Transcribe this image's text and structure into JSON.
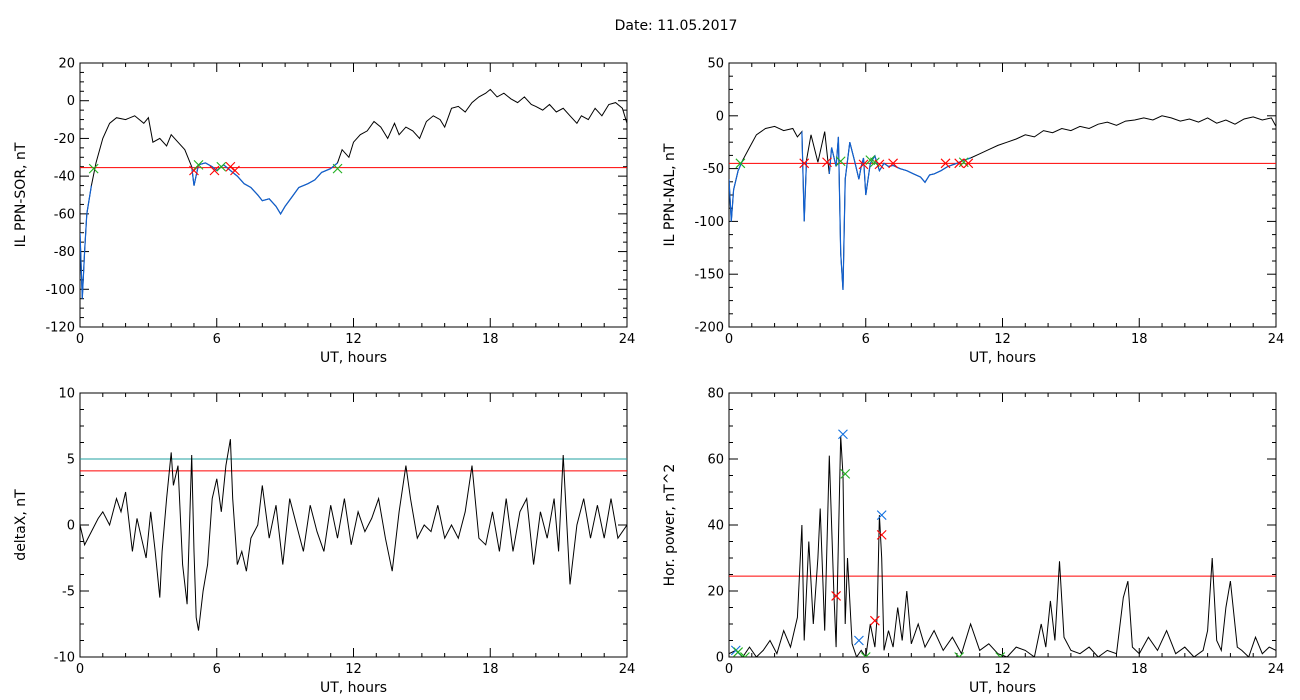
{
  "title": "Date:  11.05.2017",
  "colors": {
    "trace": "#000000",
    "highlight": "#1060d0",
    "threshold": "#ff0000",
    "threshold2": "#20a0a0",
    "marker_red": "#ff0000",
    "marker_green": "#20b020",
    "marker_blue": "#1070e0"
  },
  "chart_data": [
    {
      "id": "sor",
      "type": "line",
      "ylabel": "IL PPN-SOR, nT",
      "xlabel": "UT, hours",
      "xlim": [
        0,
        24
      ],
      "ylim": [
        -120,
        20
      ],
      "xticks": [
        0,
        6,
        12,
        18,
        24
      ],
      "yticks": [
        -120,
        -100,
        -80,
        -60,
        -40,
        -20,
        0,
        20
      ],
      "series": [
        {
          "x": [
            0,
            0.1,
            0.2,
            0.3,
            0.5,
            0.7,
            1.0,
            1.3,
            1.6,
            2.0,
            2.4,
            2.8,
            3.0,
            3.2,
            3.5,
            3.8,
            4.0,
            4.3,
            4.6,
            4.9,
            5.0,
            5.2,
            5.5,
            5.8,
            6.0,
            6.3,
            6.6,
            6.9,
            7.2,
            7.5,
            7.8,
            8.0,
            8.3,
            8.6,
            8.8,
            9.0,
            9.3,
            9.6,
            10.0,
            10.3,
            10.6,
            11.0,
            11.3,
            11.5,
            11.8,
            12.0,
            12.3,
            12.6,
            12.9,
            13.2,
            13.5,
            13.8,
            14.0,
            14.3,
            14.6,
            14.9,
            15.2,
            15.5,
            15.8,
            16.0,
            16.3,
            16.6,
            16.9,
            17.2,
            17.5,
            17.8,
            18.0,
            18.3,
            18.6,
            18.9,
            19.2,
            19.5,
            19.8,
            20.0,
            20.3,
            20.6,
            20.9,
            21.2,
            21.5,
            21.8,
            22.0,
            22.3,
            22.6,
            22.9,
            23.2,
            23.5,
            23.8,
            24.0
          ],
          "y": [
            -70,
            -105,
            -80,
            -60,
            -45,
            -33,
            -20,
            -12,
            -9,
            -10,
            -8,
            -12,
            -9,
            -22,
            -20,
            -24,
            -18,
            -22,
            -26,
            -35,
            -45,
            -34,
            -33,
            -35,
            -37,
            -34,
            -37,
            -40,
            -44,
            -46,
            -50,
            -53,
            -52,
            -56,
            -60,
            -56,
            -51,
            -46,
            -44,
            -42,
            -38,
            -36,
            -33,
            -26,
            -30,
            -22,
            -18,
            -16,
            -11,
            -14,
            -20,
            -12,
            -18,
            -14,
            -16,
            -20,
            -11,
            -8,
            -10,
            -14,
            -4,
            -3,
            -6,
            -1,
            2,
            4,
            6,
            2,
            4,
            1,
            -1,
            2,
            -2,
            -3,
            -5,
            -2,
            -6,
            -4,
            -8,
            -12,
            -8,
            -10,
            -4,
            -8,
            -2,
            -1,
            -4,
            -12
          ],
          "highlight": [
            [
              4.9,
              11.4
            ],
            [
              0.0,
              0.6
            ]
          ]
        }
      ],
      "threshold_lines": [
        {
          "y": -35.5,
          "color": "red"
        }
      ],
      "markers": [
        {
          "x": 0.6,
          "y": -36,
          "color": "green"
        },
        {
          "x": 5.0,
          "y": -37,
          "color": "red"
        },
        {
          "x": 5.2,
          "y": -34,
          "color": "green"
        },
        {
          "x": 5.9,
          "y": -37,
          "color": "red"
        },
        {
          "x": 6.2,
          "y": -35,
          "color": "green"
        },
        {
          "x": 6.6,
          "y": -35,
          "color": "red"
        },
        {
          "x": 6.8,
          "y": -37,
          "color": "red"
        },
        {
          "x": 11.3,
          "y": -36,
          "color": "green"
        }
      ]
    },
    {
      "id": "nal",
      "type": "line",
      "ylabel": "IL PPN-NAL, nT",
      "xlabel": "UT, hours",
      "xlim": [
        0,
        24
      ],
      "ylim": [
        -200,
        50
      ],
      "xticks": [
        0,
        6,
        12,
        18,
        24
      ],
      "yticks": [
        -200,
        -150,
        -100,
        -50,
        0,
        50
      ],
      "series": [
        {
          "x": [
            0,
            0.1,
            0.2,
            0.4,
            0.6,
            0.9,
            1.2,
            1.6,
            2.0,
            2.4,
            2.8,
            3.0,
            3.2,
            3.3,
            3.4,
            3.6,
            3.9,
            4.2,
            4.4,
            4.5,
            4.7,
            4.8,
            4.9,
            5.0,
            5.1,
            5.3,
            5.5,
            5.7,
            5.8,
            5.9,
            6.0,
            6.2,
            6.4,
            6.6,
            6.8,
            7.0,
            7.2,
            7.5,
            7.8,
            8.1,
            8.4,
            8.6,
            8.8,
            9.0,
            9.3,
            9.6,
            10.0,
            10.3,
            10.6,
            11.0,
            11.4,
            11.8,
            12.2,
            12.6,
            13.0,
            13.4,
            13.8,
            14.2,
            14.6,
            15.0,
            15.4,
            15.8,
            16.2,
            16.6,
            17.0,
            17.4,
            17.8,
            18.2,
            18.6,
            19.0,
            19.4,
            19.8,
            20.2,
            20.6,
            21.0,
            21.4,
            21.8,
            22.2,
            22.6,
            23.0,
            23.4,
            23.8,
            24.0
          ],
          "y": [
            -60,
            -100,
            -70,
            -52,
            -42,
            -30,
            -18,
            -12,
            -10,
            -14,
            -12,
            -20,
            -15,
            -100,
            -42,
            -18,
            -44,
            -15,
            -55,
            -30,
            -48,
            -20,
            -130,
            -165,
            -60,
            -25,
            -42,
            -60,
            -48,
            -40,
            -75,
            -45,
            -38,
            -52,
            -45,
            -48,
            -47,
            -50,
            -52,
            -55,
            -58,
            -63,
            -56,
            -55,
            -52,
            -48,
            -45,
            -42,
            -40,
            -36,
            -32,
            -28,
            -25,
            -22,
            -18,
            -20,
            -14,
            -16,
            -12,
            -14,
            -10,
            -12,
            -8,
            -6,
            -9,
            -5,
            -4,
            -2,
            -4,
            0,
            -2,
            -5,
            -3,
            -6,
            -2,
            -7,
            -4,
            -8,
            -3,
            -1,
            -4,
            -2,
            -10
          ],
          "highlight": [
            [
              0.0,
              0.7
            ],
            [
              3.2,
              3.45
            ],
            [
              4.35,
              10.9
            ]
          ]
        }
      ],
      "threshold_lines": [
        {
          "y": -45,
          "color": "red"
        }
      ],
      "markers": [
        {
          "x": 0.5,
          "y": -45,
          "color": "green"
        },
        {
          "x": 3.3,
          "y": -45,
          "color": "red"
        },
        {
          "x": 4.3,
          "y": -44,
          "color": "red"
        },
        {
          "x": 4.9,
          "y": -43,
          "color": "green"
        },
        {
          "x": 5.9,
          "y": -46,
          "color": "red"
        },
        {
          "x": 6.2,
          "y": -42,
          "color": "green"
        },
        {
          "x": 6.4,
          "y": -44,
          "color": "green"
        },
        {
          "x": 6.6,
          "y": -46,
          "color": "red"
        },
        {
          "x": 7.2,
          "y": -45,
          "color": "red"
        },
        {
          "x": 9.5,
          "y": -45,
          "color": "red"
        },
        {
          "x": 10.1,
          "y": -45,
          "color": "red"
        },
        {
          "x": 10.3,
          "y": -44,
          "color": "green"
        },
        {
          "x": 10.5,
          "y": -45,
          "color": "red"
        }
      ]
    },
    {
      "id": "deltax",
      "type": "line",
      "ylabel": "deltaX, nT",
      "xlabel": "UT, hours",
      "xlim": [
        0,
        24
      ],
      "ylim": [
        -10,
        10
      ],
      "xticks": [
        0,
        6,
        12,
        18,
        24
      ],
      "yticks": [
        -10,
        -5,
        0,
        5,
        10
      ],
      "series": [
        {
          "x": [
            0,
            0.2,
            0.5,
            0.8,
            1.0,
            1.3,
            1.6,
            1.8,
            2.0,
            2.3,
            2.5,
            2.7,
            2.9,
            3.1,
            3.3,
            3.5,
            3.6,
            3.8,
            4.0,
            4.1,
            4.3,
            4.5,
            4.7,
            4.9,
            5.0,
            5.1,
            5.2,
            5.4,
            5.6,
            5.8,
            6.0,
            6.2,
            6.4,
            6.6,
            6.7,
            6.9,
            7.1,
            7.3,
            7.5,
            7.8,
            8.0,
            8.3,
            8.6,
            8.9,
            9.2,
            9.5,
            9.8,
            10.1,
            10.4,
            10.7,
            11.0,
            11.3,
            11.6,
            11.9,
            12.2,
            12.5,
            12.8,
            13.1,
            13.4,
            13.7,
            14.0,
            14.3,
            14.5,
            14.8,
            15.1,
            15.4,
            15.7,
            16.0,
            16.3,
            16.6,
            16.9,
            17.2,
            17.5,
            17.8,
            18.1,
            18.4,
            18.7,
            19.0,
            19.3,
            19.6,
            19.9,
            20.2,
            20.5,
            20.8,
            21.0,
            21.2,
            21.5,
            21.8,
            22.1,
            22.4,
            22.7,
            23.0,
            23.3,
            23.6,
            24.0
          ],
          "y": [
            0,
            -1.5,
            -0.5,
            0.5,
            1,
            0,
            2,
            1,
            2.5,
            -2,
            0.5,
            -1,
            -2.5,
            1,
            -2,
            -5.5,
            -2,
            2,
            5.5,
            3,
            4.5,
            -3,
            -6,
            5.3,
            -2,
            -7,
            -8,
            -5,
            -3,
            2,
            3.5,
            1,
            4.5,
            6.5,
            2,
            -3,
            -2,
            -3.5,
            -1,
            0,
            3,
            -1,
            1.5,
            -3,
            2,
            0,
            -2,
            1.5,
            -0.5,
            -2,
            1.5,
            -1,
            2,
            -1.5,
            1,
            -0.5,
            0.5,
            2,
            -1,
            -3.5,
            1,
            4.5,
            2,
            -1,
            0,
            -0.5,
            1.5,
            -1,
            0,
            -1,
            1,
            4.5,
            -1,
            -1.5,
            1,
            -2,
            2,
            -2,
            1,
            2,
            -3,
            1,
            -1,
            2,
            -2,
            5.3,
            -4.5,
            0,
            2,
            -1,
            1.5,
            -1,
            2,
            -1,
            0
          ],
          "highlight": []
        }
      ],
      "threshold_lines": [
        {
          "y": 5.0,
          "color": "teal"
        },
        {
          "y": 4.1,
          "color": "red"
        }
      ],
      "markers": []
    },
    {
      "id": "power",
      "type": "line",
      "ylabel": "Hor. power, nT^2",
      "xlabel": "UT, hours",
      "xlim": [
        0,
        24
      ],
      "ylim": [
        0,
        80
      ],
      "xticks": [
        0,
        6,
        12,
        18,
        24
      ],
      "yticks": [
        0,
        20,
        40,
        60,
        80
      ],
      "series": [
        {
          "x": [
            0,
            0.3,
            0.6,
            0.9,
            1.2,
            1.5,
            1.8,
            2.1,
            2.4,
            2.7,
            3.0,
            3.2,
            3.3,
            3.5,
            3.7,
            3.9,
            4.0,
            4.2,
            4.4,
            4.6,
            4.7,
            4.8,
            4.9,
            5.0,
            5.1,
            5.2,
            5.4,
            5.6,
            5.8,
            6.0,
            6.2,
            6.4,
            6.5,
            6.6,
            6.7,
            6.8,
            7.0,
            7.2,
            7.4,
            7.6,
            7.8,
            8.0,
            8.3,
            8.6,
            9.0,
            9.4,
            9.8,
            10.2,
            10.6,
            11.0,
            11.4,
            11.8,
            12.2,
            12.6,
            13.0,
            13.4,
            13.7,
            13.9,
            14.1,
            14.3,
            14.5,
            14.7,
            15.0,
            15.4,
            15.8,
            16.2,
            16.6,
            17.0,
            17.3,
            17.5,
            17.7,
            18.0,
            18.4,
            18.8,
            19.2,
            19.6,
            20.0,
            20.4,
            20.8,
            21.0,
            21.2,
            21.4,
            21.6,
            21.8,
            22.0,
            22.3,
            22.5,
            22.8,
            23.1,
            23.4,
            23.7,
            24.0
          ],
          "y": [
            1,
            2,
            0,
            3,
            0,
            2,
            5,
            1,
            8,
            3,
            12,
            40,
            5,
            35,
            10,
            30,
            45,
            8,
            61,
            20,
            3,
            35,
            67,
            55,
            10,
            30,
            4,
            0,
            2,
            0,
            10,
            3,
            12,
            43,
            30,
            2,
            8,
            3,
            15,
            5,
            20,
            4,
            10,
            3,
            8,
            2,
            6,
            1,
            10,
            2,
            4,
            1,
            0,
            3,
            2,
            0,
            10,
            3,
            17,
            5,
            29,
            6,
            2,
            1,
            3,
            0,
            2,
            1,
            18,
            23,
            3,
            1,
            6,
            2,
            8,
            1,
            3,
            0,
            2,
            8,
            30,
            5,
            2,
            15,
            23,
            3,
            2,
            0,
            6,
            1,
            3,
            2
          ],
          "highlight": []
        }
      ],
      "threshold_lines": [
        {
          "y": 24.5,
          "color": "red"
        }
      ],
      "markers": [
        {
          "x": 0.3,
          "y": 2,
          "color": "blue"
        },
        {
          "x": 0.4,
          "y": 1.5,
          "color": "green"
        },
        {
          "x": 0.7,
          "y": 0,
          "color": "green"
        },
        {
          "x": 4.7,
          "y": 18.5,
          "color": "red"
        },
        {
          "x": 5.0,
          "y": 67.5,
          "color": "blue"
        },
        {
          "x": 5.1,
          "y": 55.5,
          "color": "green"
        },
        {
          "x": 5.7,
          "y": 5,
          "color": "blue"
        },
        {
          "x": 6.0,
          "y": 0,
          "color": "green"
        },
        {
          "x": 6.4,
          "y": 11,
          "color": "red"
        },
        {
          "x": 6.7,
          "y": 43,
          "color": "blue"
        },
        {
          "x": 6.7,
          "y": 37,
          "color": "red"
        },
        {
          "x": 10.1,
          "y": 0,
          "color": "green"
        },
        {
          "x": 11.9,
          "y": 0,
          "color": "green"
        }
      ]
    }
  ]
}
